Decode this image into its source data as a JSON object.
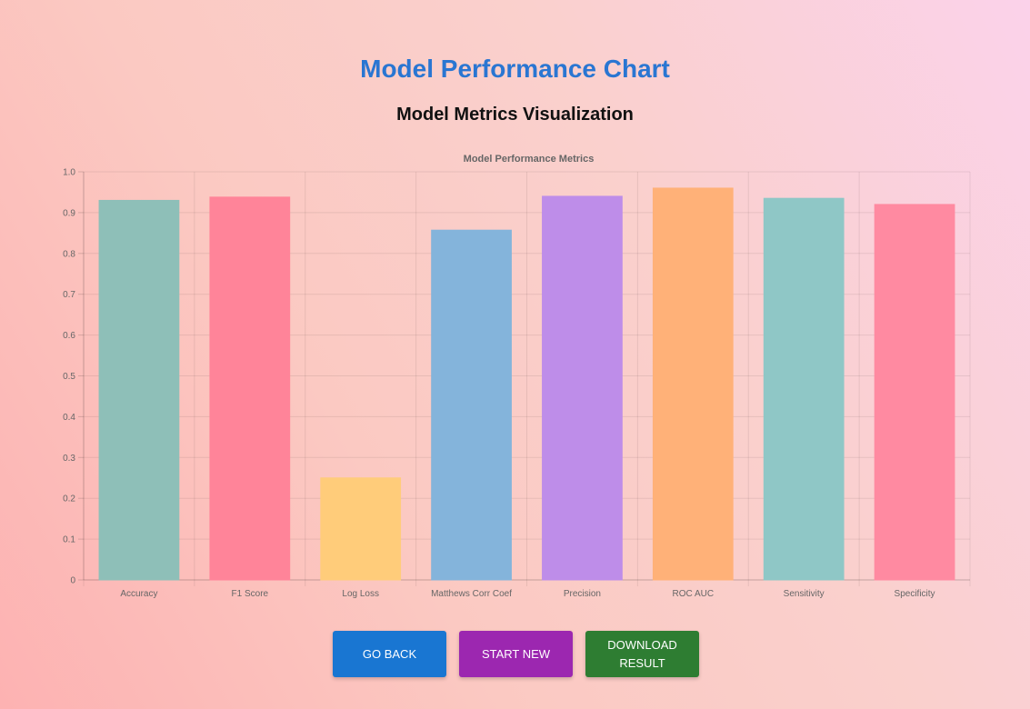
{
  "header": {
    "title": "Model Performance Chart",
    "subtitle": "Model Metrics Visualization"
  },
  "buttons": {
    "go_back": "GO BACK",
    "start_new": "START NEW",
    "download": "DOWNLOAD RESULT"
  },
  "colors": {
    "title": "#2a76d2",
    "go_back": "#1976d2",
    "start_new": "#9c27b0",
    "download": "#2e7d32"
  },
  "chart_data": {
    "type": "bar",
    "title": "Model Performance Metrics",
    "xlabel": "",
    "ylabel": "",
    "ylim": [
      0,
      1.0
    ],
    "yticks": [
      "0",
      "0.1",
      "0.2",
      "0.3",
      "0.4",
      "0.5",
      "0.6",
      "0.7",
      "0.8",
      "0.9",
      "1.0"
    ],
    "grid": true,
    "categories": [
      "Accuracy",
      "F1 Score",
      "Log Loss",
      "Matthews Corr Coef",
      "Precision",
      "ROC AUC",
      "Sensitivity",
      "Specificity"
    ],
    "values": [
      0.93,
      0.938,
      0.25,
      0.857,
      0.94,
      0.96,
      0.935,
      0.92
    ],
    "bar_colors": [
      "#8ebfb8",
      "#ff8499",
      "#ffcc7a",
      "#84b4db",
      "#be8de9",
      "#ffb178",
      "#8fc7c6",
      "#ff8aa1"
    ]
  }
}
